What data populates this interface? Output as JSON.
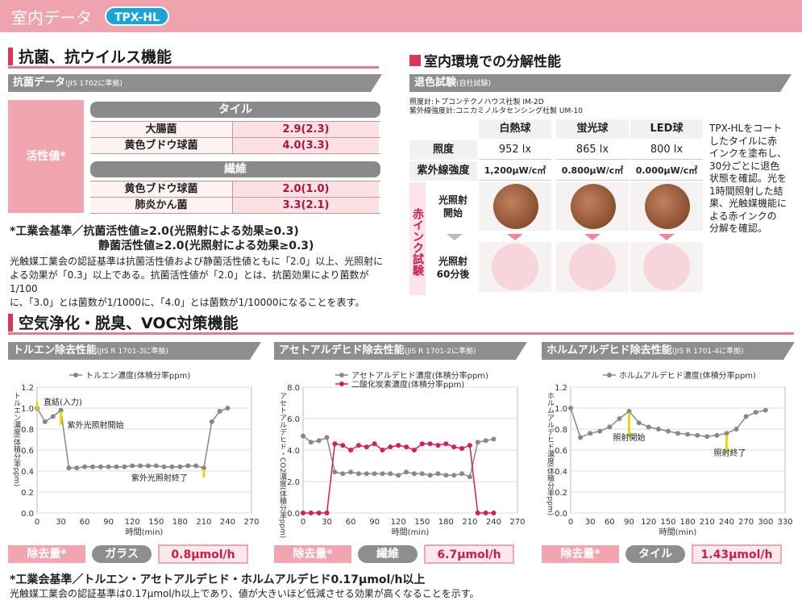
{
  "header": {
    "title": "室内データ",
    "badge": "TPX-HL"
  },
  "antibacterial": {
    "section_title": "抗菌、抗ウイルス機能",
    "bar_title": "抗菌データ",
    "bar_sub": "(JIS 1702に準拠)",
    "side_label": "活性値*",
    "tile_label": "タイル",
    "tile_rows": [
      {
        "name": "大腸菌",
        "value": "2.9(2.3)"
      },
      {
        "name": "黄色ブドウ球菌",
        "value": "4.0(3.3)"
      }
    ],
    "fiber_label": "繊維",
    "fiber_rows": [
      {
        "name": "黄色ブドウ球菌",
        "value": "2.0(1.0)"
      },
      {
        "name": "肺炎かん菌",
        "value": "3.3(2.1)"
      }
    ],
    "std_line1": "*工業会基準／抗菌活性値≥2.0(光照射による効果≥0.3)",
    "std_line2": "静菌活性値≥2.0(光照射による効果≥0.3)",
    "note1": "光触媒工業会の認証基準は抗菌活性値および静菌活性値ともに「2.0」以上、光照射に",
    "note2": "よる効果が「0.3」以上である。抗菌活性値が「2.0」とは、抗菌効果により菌数が1/100",
    "note3": "に、「3.0」とは菌数が1/1000に、「4.0」とは菌数が1/10000になることを表す。"
  },
  "decomp": {
    "section_title": "室内環境での分解性能",
    "bar_title": "退色試験",
    "bar_sub": "(自社試験)",
    "meter1": "照度計:トプコンテクノハウス社製 IM-2D",
    "meter2": "紫外線強度計:コニカミノルタセンシング社製 UM-10",
    "cols": [
      "白熱球",
      "蛍光球",
      "LED球"
    ],
    "row_lux_label": "照度",
    "row_lux": [
      "952 lx",
      "865 lx",
      "800 lx"
    ],
    "row_uv_label": "紫外線強度",
    "row_uv": [
      "1,200μW/c㎡",
      "0.800μW/c㎡",
      "0.000μW/c㎡"
    ],
    "side": "赤インク試験",
    "start_label1": "光照射",
    "start_label2": "開始",
    "after_label1": "光照射",
    "after_label2": "60分後",
    "desc": [
      "TPX-HLをコート",
      "したタイルに赤",
      "インクを塗布し、",
      "30分ごとに退色",
      "状態を確認。光を",
      "1時間照射した結",
      "果、光触媒機能に",
      "よる赤インクの",
      "分解を確認。"
    ]
  },
  "voc": {
    "section_title": "空気浄化・脱臭、VOC対策機能",
    "charts": [
      {
        "bar_title": "トルエン除去性能",
        "bar_sub": "(JIS R 1701-3に準拠)"
      },
      {
        "bar_title": "アセトアルデヒド除去性能",
        "bar_sub": "(JIS R 1701-2に準拠)"
      },
      {
        "bar_title": "ホルムアルデヒド除去性能",
        "bar_sub": "(JIS R 1701-4に準拠)"
      }
    ],
    "removal": [
      {
        "label": "除去量*",
        "substrate": "ガラス",
        "value": "0.8μmol/h"
      },
      {
        "label": "除去量*",
        "substrate": "繊維",
        "value": "6.7μmol/h"
      },
      {
        "label": "除去量*",
        "substrate": "タイル",
        "value": "1.43μmol/h"
      }
    ],
    "std_line": "*工業会基準／トルエン・アセトアルデヒド・ホルムアルデヒド0.17μmol/h以上",
    "note": "光触媒工業会の認証基準は0.17μmol/h以上であり、値が大きいほど低減させる効果が高くなることを示す。"
  },
  "chart_data": [
    {
      "type": "line",
      "title": "",
      "xlabel": "時間(min)",
      "ylabel": "トルエン濃度(体積分率ppm)",
      "xlim": [
        0,
        270
      ],
      "ylim": [
        0,
        1.2
      ],
      "xticks": [
        "0",
        "30",
        "60",
        "90",
        "120",
        "150",
        "180",
        "210",
        "240",
        "270"
      ],
      "yticks": [
        "0.0",
        "0.2",
        "0.4",
        "0.6",
        "0.8",
        "1.0",
        "1.2"
      ],
      "series": [
        {
          "name": "トルエン濃度(体積分率ppm)",
          "color": "#888888",
          "x": [
            0,
            10,
            20,
            30,
            40,
            50,
            60,
            70,
            80,
            90,
            100,
            110,
            120,
            130,
            140,
            150,
            160,
            170,
            180,
            190,
            200,
            210,
            220,
            230,
            240
          ],
          "y": [
            1.0,
            0.87,
            0.92,
            0.98,
            0.43,
            0.43,
            0.44,
            0.44,
            0.44,
            0.44,
            0.44,
            0.44,
            0.45,
            0.45,
            0.45,
            0.45,
            0.44,
            0.44,
            0.44,
            0.45,
            0.45,
            0.43,
            0.87,
            0.97,
            1.0
          ]
        }
      ],
      "annotations": [
        "直結(入力)",
        "紫外光照射開始",
        "紫外光照射終了"
      ]
    },
    {
      "type": "line",
      "title": "",
      "xlabel": "時間(min)",
      "ylabel": "アセトアルデヒド・CO2濃度(体積分率ppm)",
      "xlim": [
        0,
        270
      ],
      "ylim": [
        0,
        8.0
      ],
      "xticks": [
        "0",
        "30",
        "60",
        "90",
        "120",
        "150",
        "180",
        "210",
        "240",
        "270"
      ],
      "yticks": [
        "0.0",
        "2.0",
        "4.0",
        "6.0",
        "8.0"
      ],
      "series": [
        {
          "name": "アセトアルデヒド濃度(体積分率ppm)",
          "color": "#888888",
          "x": [
            0,
            10,
            20,
            30,
            40,
            50,
            60,
            70,
            80,
            90,
            100,
            110,
            120,
            130,
            140,
            150,
            160,
            170,
            180,
            190,
            200,
            210,
            220,
            230,
            240
          ],
          "y": [
            4.9,
            4.5,
            4.6,
            4.8,
            2.6,
            2.5,
            2.6,
            2.5,
            2.5,
            2.5,
            2.5,
            2.5,
            2.4,
            2.6,
            2.5,
            2.5,
            2.4,
            2.5,
            2.4,
            2.4,
            2.5,
            2.3,
            4.5,
            4.6,
            4.7
          ]
        },
        {
          "name": "二酸化炭素濃度(体積分率ppm)",
          "color": "#d81b5a",
          "x": [
            0,
            10,
            20,
            30,
            40,
            50,
            60,
            70,
            80,
            90,
            100,
            110,
            120,
            130,
            140,
            150,
            160,
            170,
            180,
            190,
            200,
            210,
            220,
            230,
            240
          ],
          "y": [
            0,
            0,
            0,
            0,
            4.4,
            4.3,
            4.0,
            4.3,
            4.2,
            4.4,
            4.0,
            4.2,
            4.3,
            4.2,
            4.0,
            4.4,
            4.4,
            4.3,
            4.4,
            4.2,
            4.1,
            4.3,
            0,
            0,
            0
          ]
        }
      ]
    },
    {
      "type": "line",
      "title": "",
      "xlabel": "時間(min)",
      "ylabel": "ホルムアルデヒド濃度(体積分率ppm)",
      "xlim": [
        0,
        330
      ],
      "ylim": [
        0,
        1.2
      ],
      "xticks": [
        "0",
        "30",
        "60",
        "90",
        "120",
        "150",
        "180",
        "210",
        "240",
        "270",
        "300",
        "330"
      ],
      "yticks": [
        "0.0",
        "0.2",
        "0.4",
        "0.6",
        "0.8",
        "1.0",
        "1.2"
      ],
      "series": [
        {
          "name": "ホルムアルデヒド濃度(体積分率ppm)",
          "color": "#888888",
          "x": [
            0,
            15,
            30,
            45,
            60,
            75,
            90,
            105,
            120,
            135,
            150,
            165,
            180,
            195,
            210,
            225,
            240,
            255,
            270,
            285,
            300
          ],
          "y": [
            1.0,
            0.72,
            0.76,
            0.78,
            0.82,
            0.9,
            0.97,
            0.86,
            0.82,
            0.8,
            0.78,
            0.76,
            0.75,
            0.74,
            0.73,
            0.74,
            0.76,
            0.8,
            0.92,
            0.96,
            0.98
          ]
        }
      ],
      "annotations": [
        "照射開始",
        "照射終了"
      ]
    }
  ]
}
